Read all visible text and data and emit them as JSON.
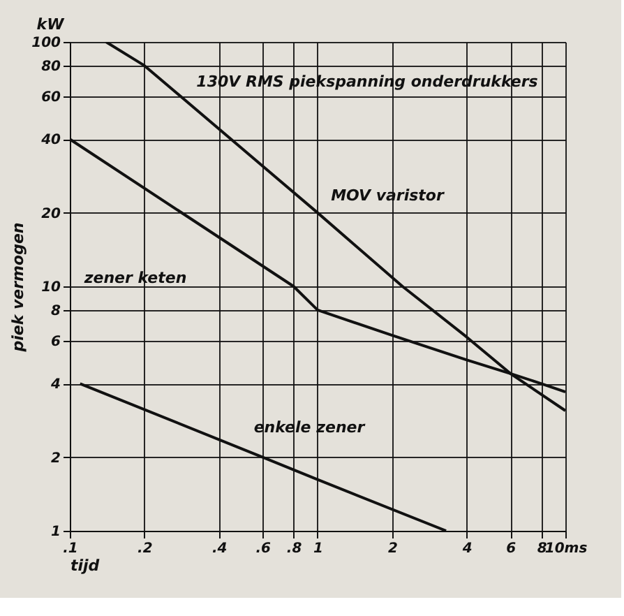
{
  "chart_data": {
    "type": "line",
    "xlabel": "tijd",
    "ylabel": "piek vermogen",
    "annotations": [
      "130V RMS piekspanning onderdrukkers",
      "kW"
    ],
    "series": [
      {
        "name": "MOV varistor",
        "color": "#111111",
        "x": [
          0.14,
          0.2,
          1,
          2.2,
          4,
          6,
          10
        ],
        "values": [
          100,
          80,
          20,
          10,
          6.2,
          4.4,
          3.1
        ]
      },
      {
        "name": "zener keten",
        "color": "#111111",
        "x": [
          0.1,
          0.8,
          1,
          2,
          4,
          6,
          8,
          10
        ],
        "values": [
          40,
          10,
          8,
          6.3,
          5.0,
          4.4,
          4.0,
          3.7
        ]
      },
      {
        "name": "enkele zener",
        "color": "#111111",
        "x": [
          0.11,
          0.6,
          1,
          3.3
        ],
        "values": [
          4,
          2,
          1.62,
          1
        ]
      }
    ],
    "log": "xy",
    "xlim": [
      0.1,
      10
    ],
    "ylim": [
      1,
      100
    ],
    "xticks": [
      {
        "value": 0.1,
        "label": ".1"
      },
      {
        "value": 0.2,
        "label": ".2"
      },
      {
        "value": 0.4,
        "label": ".4"
      },
      {
        "value": 0.6,
        "label": ".6"
      },
      {
        "value": 0.8,
        "label": ".8"
      },
      1,
      2,
      4,
      6,
      8,
      {
        "value": 10,
        "label": "10ms"
      }
    ],
    "yticks": [
      1,
      2,
      4,
      6,
      8,
      10,
      20,
      40,
      60,
      80,
      100
    ],
    "grid": true,
    "legend": false,
    "marker": "none",
    "line_style": "solid"
  }
}
